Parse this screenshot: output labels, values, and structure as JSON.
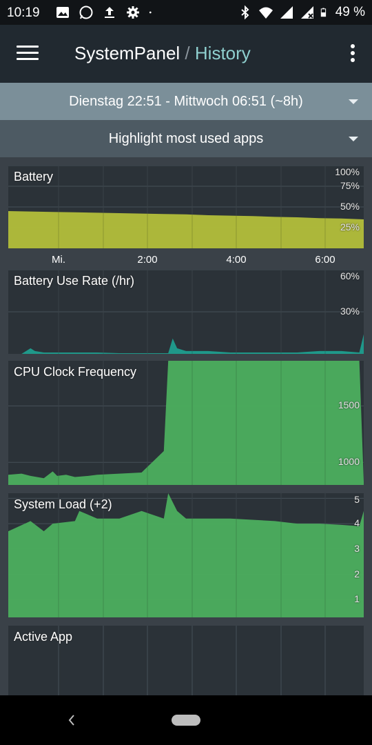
{
  "status_bar": {
    "time": "10:19",
    "battery": "49 %",
    "left_icons": [
      "image-icon",
      "whatsapp-icon",
      "upload-icon",
      "gear-icon",
      "dot-icon"
    ],
    "right_icons": [
      "bluetooth-icon",
      "wifi-icon",
      "signal-icon",
      "signal-x-icon",
      "battery-icon"
    ]
  },
  "app_bar": {
    "title": "SystemPanel",
    "separator": "/",
    "subtitle": "History"
  },
  "range_select": {
    "value": "Dienstag 22:51 - Mittwoch 06:51 (~8h)"
  },
  "highlight_select": {
    "value": "Highlight most used apps"
  },
  "x_axis": {
    "ticks": [
      "Mi.",
      "2:00",
      "4:00",
      "6:00"
    ]
  },
  "colors": {
    "battery": "#b3bf3a",
    "use_rate": "#1f9e8e",
    "cpu": "#4caf5e",
    "load": "#4caf5e"
  },
  "chart_data": [
    {
      "type": "area",
      "title": "Battery",
      "y_ticks": [
        "100%",
        "75%",
        "50%",
        "25%"
      ],
      "ylim": [
        0,
        100
      ],
      "x_hours": [
        0,
        0.5,
        1.0,
        1.5,
        2.0,
        2.5,
        3.0,
        3.5,
        4.0,
        4.5,
        5.0,
        5.5,
        6.0,
        6.5,
        7.0,
        7.5,
        8.0
      ],
      "values": [
        45,
        44.5,
        44,
        43.5,
        43,
        42.5,
        42,
        41.5,
        41,
        40,
        39.5,
        39,
        38,
        37.5,
        36.5,
        36,
        35
      ]
    },
    {
      "type": "area",
      "title": "Battery Use Rate (/hr)",
      "y_ticks": [
        "60%",
        "30%"
      ],
      "ylim": [
        0,
        60
      ],
      "x_hours": [
        0,
        0.3,
        0.5,
        0.6,
        0.8,
        1.0,
        1.5,
        2.0,
        2.5,
        3.0,
        3.6,
        3.7,
        3.8,
        4.0,
        4.5,
        5.0,
        5.5,
        6.0,
        6.5,
        7.0,
        7.5,
        7.9,
        8.0
      ],
      "values": [
        0,
        0,
        4,
        2,
        1,
        1,
        1,
        1,
        0.5,
        0.5,
        0.5,
        11,
        4,
        2,
        2,
        1,
        1,
        1,
        1,
        2,
        2,
        1,
        14
      ]
    },
    {
      "type": "area",
      "title": "CPU Clock Frequency",
      "y_ticks": [
        "1500",
        "1000"
      ],
      "ylim": [
        800,
        1900
      ],
      "x_hours": [
        0,
        0.3,
        0.5,
        0.8,
        1.0,
        1.1,
        1.3,
        1.5,
        1.8,
        2.0,
        2.5,
        3.0,
        3.5,
        3.6,
        3.7,
        4.0,
        5.0,
        6.0,
        7.0,
        7.9,
        8.0
      ],
      "values": [
        890,
        900,
        880,
        860,
        920,
        880,
        890,
        870,
        880,
        890,
        900,
        910,
        1100,
        1900,
        1900,
        1900,
        1900,
        1900,
        1900,
        1900,
        830
      ]
    },
    {
      "type": "area",
      "title": "System Load (+2)",
      "y_ticks": [
        "5",
        "4",
        "3",
        "2",
        "1"
      ],
      "ylim": [
        0.3,
        5.2
      ],
      "x_hours": [
        0,
        0.5,
        0.8,
        1.0,
        1.5,
        1.6,
        2.0,
        2.5,
        3.0,
        3.5,
        3.6,
        3.8,
        4.0,
        5.0,
        6.0,
        6.5,
        7.0,
        7.5,
        7.9,
        8.0
      ],
      "values": [
        3.7,
        4.1,
        3.7,
        4.0,
        4.1,
        4.5,
        4.2,
        4.2,
        4.5,
        4.2,
        5.2,
        4.5,
        4.2,
        4.2,
        4.1,
        4.0,
        4.0,
        3.95,
        3.9,
        4.5
      ]
    },
    {
      "type": "area",
      "title": "Active App",
      "y_ticks": [],
      "values": []
    }
  ]
}
